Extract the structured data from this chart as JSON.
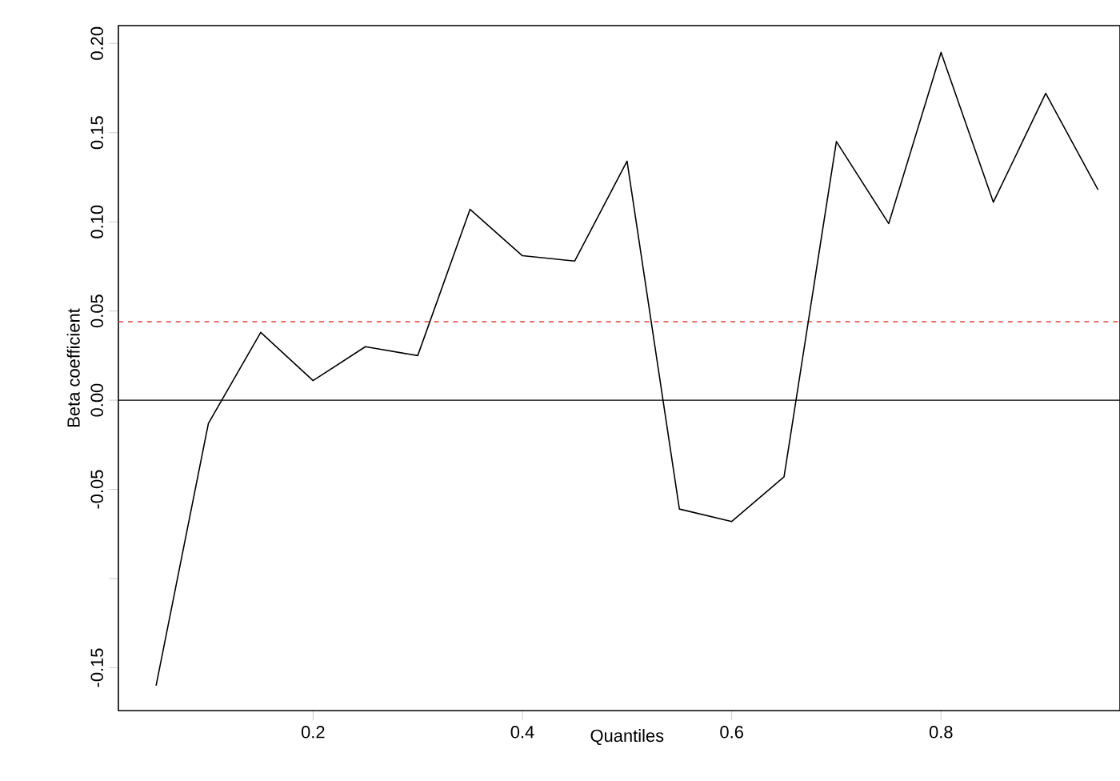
{
  "chart_data": {
    "type": "line",
    "xlabel": "Quantiles",
    "ylabel": "Beta coefficient",
    "x": [
      0.05,
      0.1,
      0.15,
      0.2,
      0.25,
      0.3,
      0.35,
      0.4,
      0.45,
      0.5,
      0.55,
      0.6,
      0.65,
      0.7,
      0.75,
      0.8,
      0.85,
      0.9,
      0.95
    ],
    "series": [
      {
        "color": "#000000",
        "values": [
          -0.16,
          -0.013,
          0.038,
          0.011,
          0.03,
          0.025,
          0.107,
          0.081,
          0.078,
          0.134,
          -0.061,
          -0.068,
          -0.043,
          0.145,
          0.099,
          0.195,
          0.111,
          0.172,
          0.118
        ]
      }
    ],
    "xlim": [
      0.014,
      0.971
    ],
    "ylim": [
      -0.174,
      0.21
    ],
    "xticks": [
      0.2,
      0.4,
      0.6,
      0.8
    ],
    "yticks": [
      {
        "value": -0.15,
        "label": "-0.15"
      },
      {
        "value": -0.1,
        "label": null
      },
      {
        "value": -0.05,
        "label": "-0.05"
      },
      {
        "value": 0,
        "label": "0.00"
      },
      {
        "value": 0.05,
        "label": "0.05"
      },
      {
        "value": 0.1,
        "label": "0.10"
      },
      {
        "value": 0.15,
        "label": "0.15"
      },
      {
        "value": 0.2,
        "label": "0.20"
      }
    ],
    "ref_lines": [
      {
        "axis": "y",
        "value": 0,
        "color": "#000000",
        "line_style": "solid"
      },
      {
        "axis": "y",
        "value": 0.044,
        "color": "#d9443a",
        "line_style": "dashed"
      }
    ],
    "grid": false,
    "marker": "none",
    "line_style": "solid"
  }
}
